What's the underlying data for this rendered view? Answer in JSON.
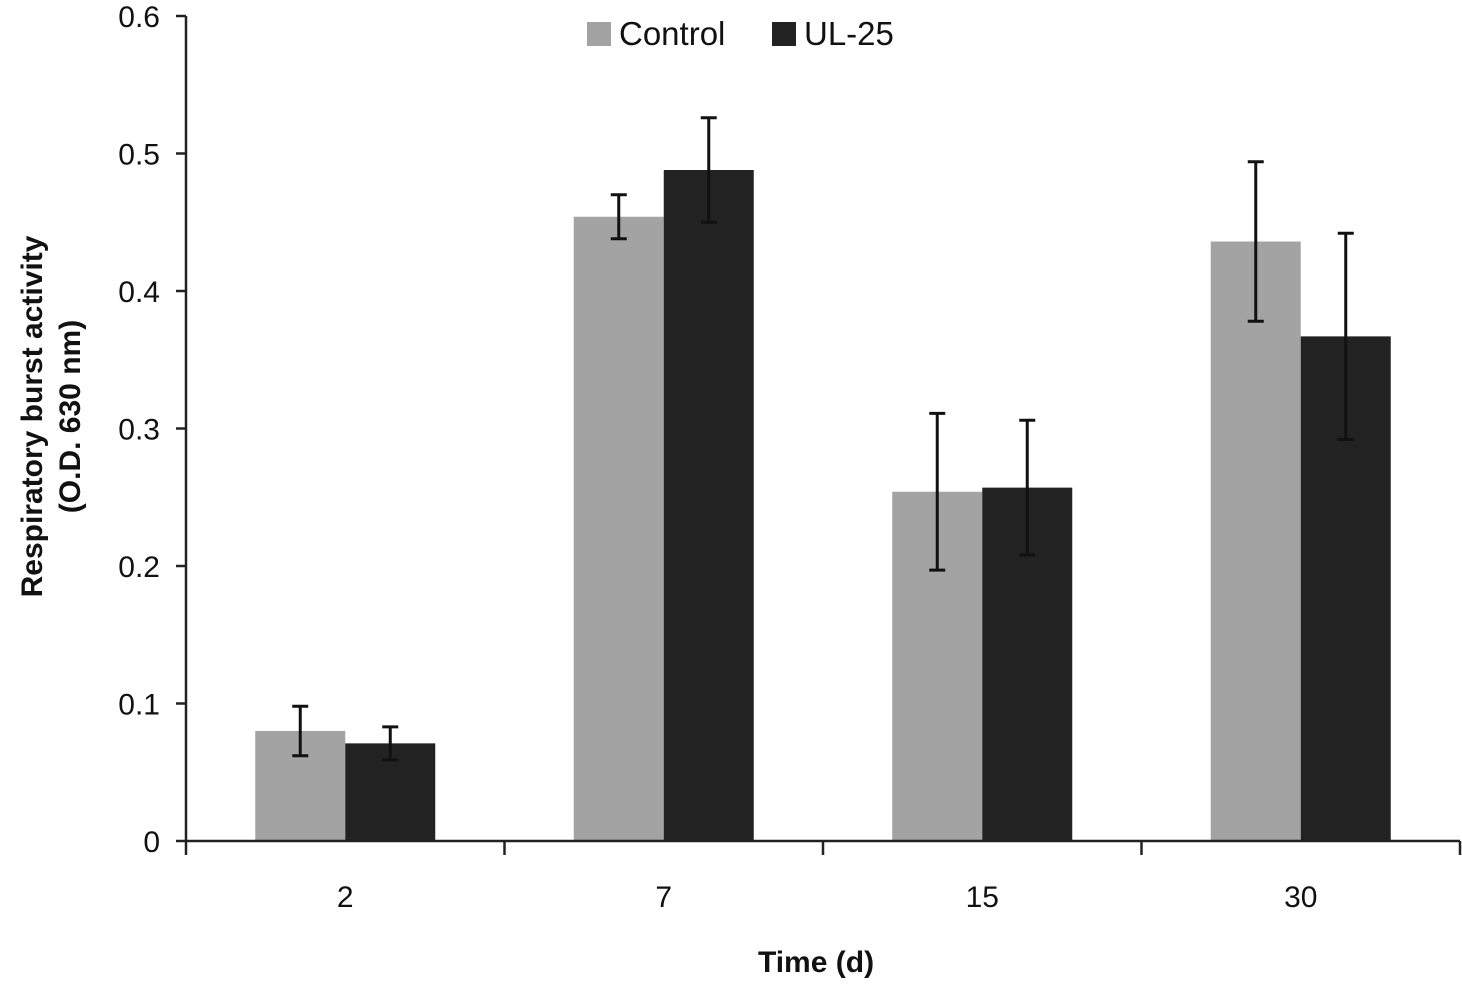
{
  "chart_data": {
    "type": "bar",
    "title": "",
    "xlabel": "Time (d)",
    "ylabel_lines": [
      "Respiratory burst activity",
      "(O.D. 630 nm)"
    ],
    "categories": [
      "2",
      "7",
      "15",
      "30"
    ],
    "ylim": [
      0,
      0.6
    ],
    "yticks": [
      0,
      0.1,
      0.2,
      0.3,
      0.4,
      0.5,
      0.6
    ],
    "ytick_labels": [
      "0",
      "0.1",
      "0.2",
      "0.3",
      "0.4",
      "0.5",
      "0.6"
    ],
    "legend_position": "top-center",
    "grid": false,
    "series": [
      {
        "name": "Control",
        "color": "#a3a3a3",
        "values": [
          0.08,
          0.454,
          0.254,
          0.436
        ],
        "errors": [
          0.018,
          0.016,
          0.057,
          0.058
        ]
      },
      {
        "name": "UL-25",
        "color": "#222222",
        "values": [
          0.071,
          0.488,
          0.257,
          0.367
        ],
        "errors": [
          0.012,
          0.038,
          0.049,
          0.075
        ]
      }
    ]
  }
}
